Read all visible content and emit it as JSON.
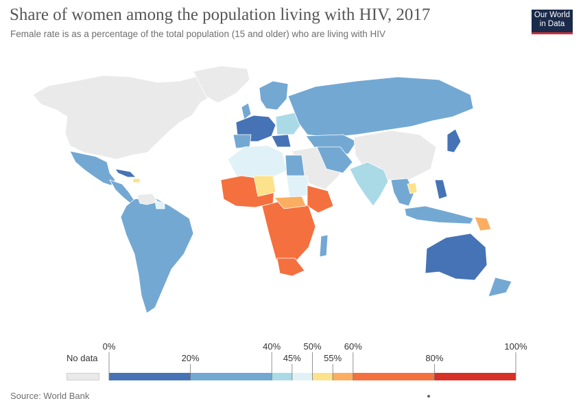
{
  "title": "Share of women among the population living with HIV, 2017",
  "subtitle": "Female rate is as a percentage of the total population (15 and older) who are living with HIV",
  "logo": {
    "line1": "Our World",
    "line2": "in Data"
  },
  "source": "Source: World Bank",
  "legend": {
    "no_data_label": "No data",
    "no_data_color": "#e9e9e9",
    "bins": [
      {
        "from": 0,
        "to": 20,
        "color": "#4573b6"
      },
      {
        "from": 20,
        "to": 40,
        "color": "#73a8d3"
      },
      {
        "from": 40,
        "to": 45,
        "color": "#abdae7"
      },
      {
        "from": 45,
        "to": 50,
        "color": "#e0f2f7"
      },
      {
        "from": 50,
        "to": 55,
        "color": "#fde28c"
      },
      {
        "from": 55,
        "to": 60,
        "color": "#fbae61"
      },
      {
        "from": 60,
        "to": 80,
        "color": "#f4703f"
      },
      {
        "from": 80,
        "to": 100,
        "color": "#d73027"
      }
    ],
    "ticks": [
      "0%",
      "20%",
      "40%",
      "45%",
      "50%",
      "55%",
      "60%",
      "80%",
      "100%"
    ]
  },
  "colors": {
    "land_no_data": "#eaeaea",
    "bin_0_20": "#4573b6",
    "bin_20_40": "#73a8d3",
    "bin_40_45": "#abdae7",
    "bin_45_50": "#e0f2f7",
    "bin_50_55": "#fde28c",
    "bin_55_60": "#fbae61",
    "bin_60_80": "#f4703f"
  }
}
